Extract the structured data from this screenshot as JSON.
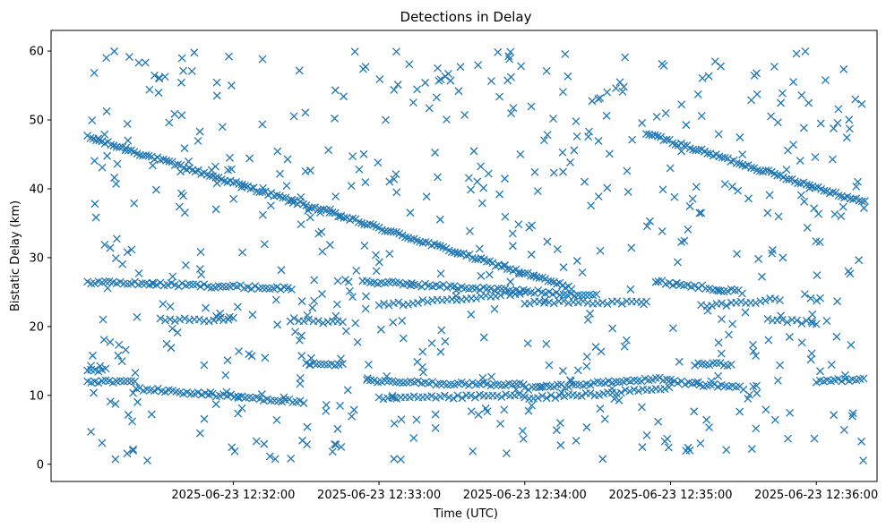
{
  "chart_data": {
    "type": "scatter",
    "title": "Detections in Delay",
    "xlabel": "Time (UTC)",
    "ylabel": "Bistatic Delay (km)",
    "x_axis_type": "time",
    "xlim": [
      "2025-06-23 12:30:45",
      "2025-06-23 12:36:25"
    ],
    "ylim": [
      -2.5,
      63
    ],
    "x_ticks": [
      "2025-06-23 12:32:00",
      "2025-06-23 12:33:00",
      "2025-06-23 12:34:00",
      "2025-06-23 12:35:00",
      "2025-06-23 12:36:00"
    ],
    "y_ticks": [
      0,
      10,
      20,
      30,
      40,
      50,
      60
    ],
    "grid": false,
    "marker": "x",
    "color": "#1f77b4",
    "series": [
      {
        "tracks": [
          {
            "t_start": "2025-06-23 12:31:00",
            "t_end": "2025-06-23 12:34:20",
            "y_start": 47.5,
            "y_end": 25.5,
            "step_s": 1.2
          },
          {
            "t_start": "2025-06-23 12:34:50",
            "t_end": "2025-06-23 12:36:20",
            "y_start": 48.0,
            "y_end": 38.0,
            "step_s": 1.2
          },
          {
            "t_start": "2025-06-23 12:31:00",
            "t_end": "2025-06-23 12:32:25",
            "y_start": 26.5,
            "y_end": 25.5,
            "step_s": 1.5
          },
          {
            "t_start": "2025-06-23 12:32:55",
            "t_end": "2025-06-23 12:34:30",
            "y_start": 26.5,
            "y_end": 24.5,
            "step_s": 1.5
          },
          {
            "t_start": "2025-06-23 12:34:55",
            "t_end": "2025-06-23 12:35:30",
            "y_start": 26.5,
            "y_end": 25.0,
            "step_s": 1.5
          },
          {
            "t_start": "2025-06-23 12:33:00",
            "t_end": "2025-06-23 12:34:00",
            "y_start": 23.0,
            "y_end": 25.0,
            "step_s": 2.0
          },
          {
            "t_start": "2025-06-23 12:34:00",
            "t_end": "2025-06-23 12:34:50",
            "y_start": 23.5,
            "y_end": 23.5,
            "step_s": 2.0
          },
          {
            "t_start": "2025-06-23 12:35:15",
            "t_end": "2025-06-23 12:35:45",
            "y_start": 23.0,
            "y_end": 24.0,
            "step_s": 2.0
          },
          {
            "t_start": "2025-06-23 12:31:30",
            "t_end": "2025-06-23 12:32:00",
            "y_start": 21.0,
            "y_end": 21.0,
            "step_s": 2.0
          },
          {
            "t_start": "2025-06-23 12:32:25",
            "t_end": "2025-06-23 12:32:45",
            "y_start": 21.0,
            "y_end": 20.5,
            "step_s": 2.0
          },
          {
            "t_start": "2025-06-23 12:35:40",
            "t_end": "2025-06-23 12:36:00",
            "y_start": 21.0,
            "y_end": 20.5,
            "step_s": 2.0
          },
          {
            "t_start": "2025-06-23 12:31:00",
            "t_end": "2025-06-23 12:31:20",
            "y_start": 12.0,
            "y_end": 12.0,
            "step_s": 1.5
          },
          {
            "t_start": "2025-06-23 12:31:20",
            "t_end": "2025-06-23 12:32:30",
            "y_start": 11.0,
            "y_end": 9.0,
            "step_s": 1.5
          },
          {
            "t_start": "2025-06-23 12:32:55",
            "t_end": "2025-06-23 12:34:00",
            "y_start": 12.0,
            "y_end": 11.5,
            "step_s": 1.5
          },
          {
            "t_start": "2025-06-23 12:33:00",
            "t_end": "2025-06-23 12:34:00",
            "y_start": 9.5,
            "y_end": 10.0,
            "step_s": 1.8
          },
          {
            "t_start": "2025-06-23 12:34:00",
            "t_end": "2025-06-23 12:35:00",
            "y_start": 11.0,
            "y_end": 12.5,
            "step_s": 1.5
          },
          {
            "t_start": "2025-06-23 12:34:00",
            "t_end": "2025-06-23 12:35:00",
            "y_start": 9.5,
            "y_end": 11.0,
            "step_s": 1.8
          },
          {
            "t_start": "2025-06-23 12:35:00",
            "t_end": "2025-06-23 12:35:30",
            "y_start": 12.0,
            "y_end": 11.0,
            "step_s": 1.5
          },
          {
            "t_start": "2025-06-23 12:36:00",
            "t_end": "2025-06-23 12:36:20",
            "y_start": 12.0,
            "y_end": 12.5,
            "step_s": 1.5
          },
          {
            "t_start": "2025-06-23 12:31:00",
            "t_end": "2025-06-23 12:31:08",
            "y_start": 13.7,
            "y_end": 13.7,
            "step_s": 1.5
          },
          {
            "t_start": "2025-06-23 12:32:30",
            "t_end": "2025-06-23 12:32:45",
            "y_start": 14.5,
            "y_end": 14.5,
            "step_s": 1.5
          },
          {
            "t_start": "2025-06-23 12:35:10",
            "t_end": "2025-06-23 12:35:25",
            "y_start": 14.5,
            "y_end": 14.5,
            "step_s": 1.5
          }
        ],
        "clutter": {
          "count": 600,
          "t_min": "2025-06-23 12:31:00",
          "t_max": "2025-06-23 12:36:20",
          "y_min": 0.5,
          "y_max": 60
        }
      }
    ]
  }
}
